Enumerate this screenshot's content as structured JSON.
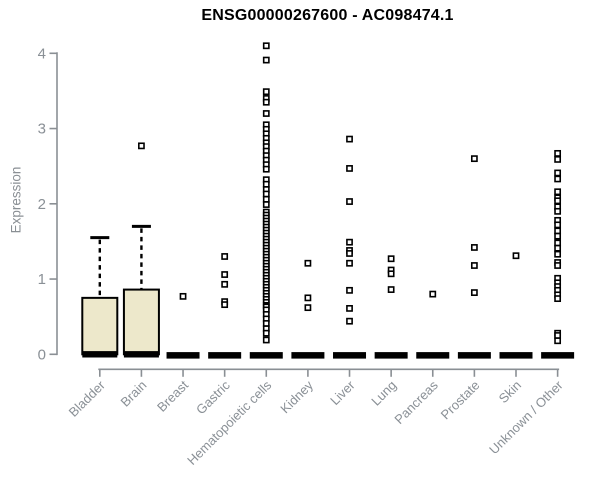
{
  "chart_data": {
    "type": "boxplot",
    "title": "ENSG00000267600 - AC098474.1",
    "ylabel": "Expression",
    "xlabel": "",
    "ylim": [
      0,
      4.15
    ],
    "yticks": [
      0,
      1,
      2,
      3,
      4
    ],
    "grid": false,
    "legend": "none",
    "categories": [
      "Bladder",
      "Brain",
      "Breast",
      "Gastric",
      "Hematopoietic cells",
      "Kidney",
      "Liver",
      "Lung",
      "Pancreas",
      "Prostate",
      "Skin",
      "Unknown / Other"
    ],
    "boxes": [
      {
        "category": "Bladder",
        "q1": 0,
        "median": 0,
        "q3": 0.75,
        "whisker_low": 0,
        "whisker_high": 1.55,
        "outliers": []
      },
      {
        "category": "Brain",
        "q1": 0,
        "median": 0,
        "q3": 0.86,
        "whisker_low": 0,
        "whisker_high": 1.7,
        "outliers": [
          2.77
        ]
      },
      {
        "category": "Breast",
        "q1": 0,
        "median": 0,
        "q3": 0,
        "whisker_low": 0,
        "whisker_high": 0,
        "outliers": [
          0.77
        ]
      },
      {
        "category": "Gastric",
        "q1": 0,
        "median": 0,
        "q3": 0,
        "whisker_low": 0,
        "whisker_high": 0,
        "outliers": [
          1.3,
          1.06,
          0.93,
          0.7,
          0.66
        ]
      },
      {
        "category": "Hematopoietic cells",
        "q1": 0,
        "median": 0,
        "q3": 0,
        "whisker_low": 0,
        "whisker_high": 0,
        "outliers": [
          4.1,
          3.91,
          3.49,
          3.4,
          3.35,
          3.2,
          3.05,
          2.99,
          2.93,
          2.87,
          2.81,
          2.76,
          2.7,
          2.64,
          2.58,
          2.52,
          2.46,
          2.32,
          2.26,
          2.19,
          2.13,
          2.06,
          1.99,
          1.89,
          1.85,
          1.81,
          1.77,
          1.73,
          1.69,
          1.65,
          1.61,
          1.57,
          1.53,
          1.49,
          1.45,
          1.41,
          1.37,
          1.33,
          1.29,
          1.25,
          1.21,
          1.17,
          1.13,
          1.09,
          1.05,
          1.01,
          0.97,
          0.93,
          0.89,
          0.85,
          0.81,
          0.77,
          0.73,
          0.69,
          0.65,
          0.63,
          0.59,
          0.53,
          0.47,
          0.41,
          0.34,
          0.28,
          0.19
        ]
      },
      {
        "category": "Kidney",
        "q1": 0,
        "median": 0,
        "q3": 0,
        "whisker_low": 0,
        "whisker_high": 0,
        "outliers": [
          1.21,
          0.75,
          0.62
        ]
      },
      {
        "category": "Liver",
        "q1": 0,
        "median": 0,
        "q3": 0,
        "whisker_low": 0,
        "whisker_high": 0,
        "outliers": [
          2.86,
          2.47,
          2.03,
          1.49,
          1.38,
          1.34,
          1.21,
          0.85,
          0.61,
          0.44
        ]
      },
      {
        "category": "Lung",
        "q1": 0,
        "median": 0,
        "q3": 0,
        "whisker_low": 0,
        "whisker_high": 0,
        "outliers": [
          1.27,
          1.12,
          1.07,
          0.86
        ]
      },
      {
        "category": "Pancreas",
        "q1": 0,
        "median": 0,
        "q3": 0,
        "whisker_low": 0,
        "whisker_high": 0,
        "outliers": [
          0.8
        ]
      },
      {
        "category": "Prostate",
        "q1": 0,
        "median": 0,
        "q3": 0,
        "whisker_low": 0,
        "whisker_high": 0,
        "outliers": [
          2.6,
          1.42,
          1.18,
          0.82
        ]
      },
      {
        "category": "Skin",
        "q1": 0,
        "median": 0,
        "q3": 0,
        "whisker_low": 0,
        "whisker_high": 0,
        "outliers": [
          1.31
        ]
      },
      {
        "category": "Unknown / Other",
        "q1": 0,
        "median": 0,
        "q3": 0,
        "whisker_low": 0,
        "whisker_high": 0,
        "outliers": [
          2.67,
          2.59,
          2.41,
          2.33,
          2.16,
          2.08,
          2.04,
          1.96,
          1.9,
          1.78,
          1.72,
          1.64,
          1.57,
          1.48,
          1.41,
          1.33,
          1.22,
          1.18,
          1.01,
          0.95,
          0.9,
          0.85,
          0.79,
          0.74,
          0.28,
          0.25,
          0.18
        ]
      }
    ],
    "colors": {
      "box_fill": "#EDE8CB",
      "box_border": "#000000",
      "median": "#000000",
      "whisker": "#000000",
      "outlier_stroke": "#000000",
      "outlier_fill": "#FFFFFF",
      "axis": "#8a8f94",
      "tick_label": "#8a9096",
      "title": "#000000"
    }
  }
}
